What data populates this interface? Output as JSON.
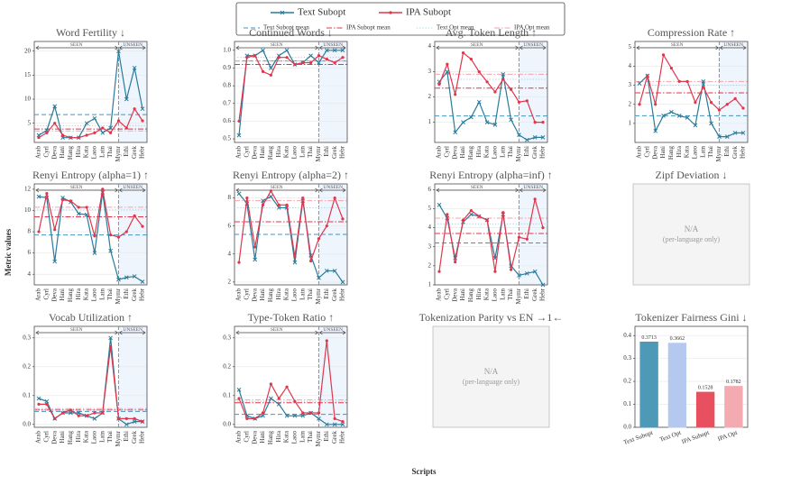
{
  "xlabel": "Scripts",
  "ylabel": "Metric values",
  "legend": [
    {
      "name": "Text Subopt",
      "color": "#2a7b9b",
      "style": "cross"
    },
    {
      "name": "IPA Subopt",
      "color": "#e0364c",
      "style": "dot"
    },
    {
      "name": "Text Subopt mean",
      "color": "#4a93b8",
      "style": "dashed"
    },
    {
      "name": "IPA Subopt mean",
      "color": "#e0364c",
      "style": "dashdot"
    },
    {
      "name": "Text Opt mean",
      "color": "#a9cfe3",
      "style": "dotted"
    },
    {
      "name": "IPA Opt mean",
      "color": "#f2a3ad",
      "style": "dashdot"
    }
  ],
  "chart_data": [
    {
      "type": "line",
      "title": "Word Fertility ↓",
      "categories": [
        "Arab",
        "Cyrl",
        "Deva",
        "Hani",
        "Hang",
        "Hira",
        "Kata",
        "Laoo",
        "Latn",
        "Thai",
        "Mymr",
        "Ethi",
        "Grek",
        "Hebr"
      ],
      "series": [
        {
          "color": "#2a7b9b",
          "values": [
            2.5,
            3.5,
            8.5,
            2,
            2,
            2,
            5,
            6,
            3,
            4,
            20,
            10,
            16.5,
            8
          ]
        },
        {
          "color": "#e0364c",
          "values": [
            2,
            3,
            5,
            2.5,
            2,
            2,
            2.5,
            3,
            4,
            3,
            5.5,
            4,
            8,
            5.5
          ]
        }
      ],
      "means": [
        6.8,
        3.8,
        4.5,
        3.4
      ],
      "ylim": [
        1,
        22
      ],
      "yticks": [
        5,
        10,
        15,
        20
      ],
      "grid": true,
      "seen_label": "SEEN",
      "unseen_label": "UNSEEN",
      "split": "Mymr"
    },
    {
      "type": "line",
      "title": "Continued Words ↓",
      "categories": [
        "Arab",
        "Cyrl",
        "Deva",
        "Hani",
        "Hang",
        "Hira",
        "Kata",
        "Laoo",
        "Latn",
        "Thai",
        "Mymr",
        "Ethi",
        "Grek",
        "Hebr"
      ],
      "series": [
        {
          "color": "#2a7b9b",
          "values": [
            0.52,
            0.97,
            0.97,
            1.0,
            0.9,
            0.97,
            1.0,
            0.92,
            0.93,
            0.97,
            0.93,
            1.0,
            1.0,
            1.0
          ]
        },
        {
          "color": "#e0364c",
          "values": [
            0.6,
            0.96,
            0.97,
            0.88,
            0.86,
            0.96,
            0.96,
            0.92,
            0.93,
            0.93,
            0.97,
            0.95,
            0.93,
            0.96
          ]
        }
      ],
      "means": [
        0.94,
        0.92,
        0.96,
        0.94
      ],
      "ylim": [
        0.48,
        1.05
      ],
      "yticks": [
        0.5,
        0.6,
        0.7,
        0.8,
        0.9,
        {
          "value": 1,
          "label": "1.0"
        }
      ],
      "grid": true,
      "seen_label": "SEEN",
      "unseen_label": "UNSEEN",
      "split": "Mymr"
    },
    {
      "type": "line",
      "title": "Avg. Token Length ↑",
      "categories": [
        "Arab",
        "Cyrl",
        "Deva",
        "Hani",
        "Hang",
        "Hira",
        "Kata",
        "Laoo",
        "Latn",
        "Thai",
        "Mymr",
        "Ethi",
        "Grek",
        "Hebr"
      ],
      "series": [
        {
          "color": "#2a7b9b",
          "values": [
            2.6,
            3,
            0.6,
            1.0,
            1.2,
            1.8,
            1.0,
            0.9,
            2.9,
            1.1,
            0.5,
            0.3,
            0.4,
            0.4
          ]
        },
        {
          "color": "#e0364c",
          "values": [
            2.5,
            3.3,
            2.1,
            3.75,
            3.5,
            3.0,
            2.6,
            2.2,
            2.7,
            2.3,
            1.8,
            1.85,
            1.0,
            1.0
          ]
        }
      ],
      "means": [
        1.25,
        2.35,
        2.7,
        2.9
      ],
      "ylim": [
        0.2,
        4.2
      ],
      "yticks": [
        1,
        2,
        3,
        4
      ],
      "grid": true,
      "seen_label": "SEEN",
      "unseen_label": "UNSEEN",
      "split": "Mymr"
    },
    {
      "type": "line",
      "title": "Compression Rate ↑",
      "categories": [
        "Arab",
        "Cyrl",
        "Deva",
        "Hani",
        "Hang",
        "Hira",
        "Kata",
        "Laoo",
        "Latn",
        "Thai",
        "Mymr",
        "Ethi",
        "Grek",
        "Hebr"
      ],
      "series": [
        {
          "color": "#2a7b9b",
          "values": [
            3.1,
            3.5,
            0.6,
            1.4,
            1.6,
            1.4,
            1.3,
            0.9,
            3.2,
            1.0,
            0.3,
            0.3,
            0.5,
            0.5
          ]
        },
        {
          "color": "#e0364c",
          "values": [
            2.0,
            3.5,
            2.0,
            4.6,
            3.9,
            3.2,
            3.2,
            2.1,
            2.9,
            2.1,
            1.7,
            2.0,
            2.3,
            1.8
          ]
        }
      ],
      "means": [
        1.4,
        2.6,
        3.0,
        3.2
      ],
      "ylim": [
        0,
        5.3
      ],
      "yticks": [
        1,
        2,
        3,
        4,
        5
      ],
      "grid": true,
      "seen_label": "SEEN",
      "unseen_label": "UNSEEN",
      "split": "Mymr"
    },
    {
      "type": "line",
      "title": "Renyi Entropy (alpha=1) ↑",
      "categories": [
        "Arab",
        "Cyrl",
        "Deva",
        "Hani",
        "Hang",
        "Hira",
        "Kata",
        "Laoo",
        "Latn",
        "Thai",
        "Mymr",
        "Ethi",
        "Grek",
        "Hebr"
      ],
      "series": [
        {
          "color": "#2a7b9b",
          "values": [
            11.3,
            11.2,
            5.2,
            11.2,
            10.8,
            9.7,
            9.6,
            6,
            11.7,
            6.2,
            3.5,
            3.7,
            3.8,
            3.3
          ]
        },
        {
          "color": "#e0364c",
          "values": [
            8,
            11.6,
            8.2,
            11,
            10.9,
            10.3,
            10.3,
            7.6,
            12,
            7.7,
            7.5,
            8,
            9.5,
            8.5
          ]
        }
      ],
      "means": [
        7.7,
        9.4,
        10.1,
        10.3
      ],
      "ylim": [
        3,
        12.5
      ],
      "yticks": [
        4,
        6,
        8,
        10,
        12
      ],
      "grid": true,
      "seen_label": "SEEN",
      "unseen_label": "UNSEEN",
      "split": "Mymr"
    },
    {
      "type": "line",
      "title": "Renyi Entropy (alpha=2) ↑",
      "categories": [
        "Arab",
        "Cyrl",
        "Deva",
        "Hani",
        "Hang",
        "Hira",
        "Kata",
        "Laoo",
        "Latn",
        "Thai",
        "Mymr",
        "Ethi",
        "Grek",
        "Hebr"
      ],
      "series": [
        {
          "color": "#2a7b9b",
          "values": [
            8.3,
            7.6,
            3.6,
            7.8,
            8.1,
            7.3,
            7.3,
            3.4,
            7.8,
            3.9,
            2.3,
            2.8,
            2.8,
            2.0
          ]
        },
        {
          "color": "#e0364c",
          "values": [
            3.4,
            8.0,
            4.5,
            7.5,
            8.5,
            7.5,
            7.5,
            3.8,
            8,
            3.5,
            5.1,
            6,
            8,
            6.5
          ]
        }
      ],
      "means": [
        5.4,
        6.3,
        7.3,
        7.8
      ],
      "ylim": [
        1.8,
        9
      ],
      "yticks": [
        2,
        4,
        6,
        8
      ],
      "grid": true,
      "seen_label": "SEEN",
      "unseen_label": "UNSEEN",
      "split": "Mymr"
    },
    {
      "type": "line",
      "title": "Renyi Entropy (alpha=inf) ↑",
      "categories": [
        "Arab",
        "Cyrl",
        "Deva",
        "Hani",
        "Hang",
        "Hira",
        "Kata",
        "Laoo",
        "Latn",
        "Thai",
        "Mymr",
        "Ethi",
        "Grek",
        "Hebr"
      ],
      "series": [
        {
          "color": "#2a7b9b",
          "values": [
            5.2,
            4.5,
            2.4,
            4.3,
            4.7,
            4.6,
            4.4,
            2.4,
            4.7,
            2.0,
            1.5,
            1.6,
            1.7,
            1.0
          ]
        },
        {
          "color": "#e0364c",
          "values": [
            1.7,
            4.7,
            2.2,
            4.4,
            4.9,
            4.6,
            4.4,
            1.7,
            4.8,
            1.8,
            3.5,
            3.4,
            5.5,
            4.0
          ]
        }
      ],
      "means": [
        3.2,
        3.7,
        4.2,
        4.5
      ],
      "ylim": [
        1,
        6.3
      ],
      "yticks": [
        1,
        2,
        3,
        4,
        5,
        6
      ],
      "grid": true,
      "seen_label": "SEEN",
      "unseen_label": "UNSEEN",
      "split": "Mymr"
    },
    {
      "type": "placeholder",
      "title": "Zipf Deviation ↓",
      "text": "N/A",
      "note": "(per-language only)"
    },
    {
      "type": "line",
      "title": "Vocab Utilization ↑",
      "categories": [
        "Arab",
        "Cyrl",
        "Deva",
        "Hani",
        "Hang",
        "Hira",
        "Kata",
        "Laoo",
        "Latn",
        "Thai",
        "Mymr",
        "Ethi",
        "Grek",
        "Hebr"
      ],
      "series": [
        {
          "color": "#2a7b9b",
          "values": [
            0.09,
            0.08,
            0.02,
            0.04,
            0.04,
            0.04,
            0.03,
            0.02,
            0.04,
            0.3,
            0.02,
            0.0,
            0.01,
            0.01
          ]
        },
        {
          "color": "#e0364c",
          "values": [
            0.07,
            0.07,
            0.02,
            0.04,
            0.05,
            0.03,
            0.03,
            0.04,
            0.04,
            0.27,
            0.02,
            0.02,
            0.02,
            0.01
          ]
        }
      ],
      "means": [
        0.045,
        0.05,
        0.05,
        0.055
      ],
      "ylim": [
        -0.01,
        0.34
      ],
      "yticks": [
        {
          "value": 0,
          "label": "0.0"
        },
        0.1,
        0.2,
        0.3
      ],
      "grid": true,
      "seen_label": "SEEN",
      "unseen_label": "UNSEEN",
      "split": "Mymr"
    },
    {
      "type": "line",
      "title": "Type-Token Ratio ↑",
      "categories": [
        "Arab",
        "Cyrl",
        "Deva",
        "Hani",
        "Hang",
        "Hira",
        "Kata",
        "Laoo",
        "Latn",
        "Thai",
        "Mymr",
        "Ethi",
        "Grek",
        "Hebr"
      ],
      "series": [
        {
          "color": "#2a7b9b",
          "values": [
            0.12,
            0.03,
            0.02,
            0.03,
            0.09,
            0.07,
            0.03,
            0.03,
            0.03,
            0.04,
            0.02,
            0.0,
            0.0,
            0.0
          ]
        },
        {
          "color": "#e0364c",
          "values": [
            0.09,
            0.02,
            0.02,
            0.04,
            0.14,
            0.09,
            0.13,
            0.08,
            0.04,
            0.04,
            0.04,
            0.29,
            0.02,
            0.01
          ]
        }
      ],
      "means": [
        0.035,
        0.075,
        0.08,
        0.085
      ],
      "ylim": [
        -0.01,
        0.34
      ],
      "yticks": [
        {
          "value": 0,
          "label": "0.0"
        },
        0.1,
        0.2,
        0.3
      ],
      "grid": true,
      "seen_label": "SEEN",
      "unseen_label": "UNSEEN",
      "split": "Mymr"
    },
    {
      "type": "placeholder",
      "title": "Tokenization Parity vs EN →1←",
      "text": "N/A",
      "note": "(per-language only)"
    },
    {
      "type": "bar",
      "title": "Tokenizer Fairness Gini ↓",
      "categories": [
        "Text Subopt",
        "Text Opt",
        "IPA Subopt",
        "IPA Opt"
      ],
      "values": [
        0.3713,
        0.3662,
        0.1528,
        0.1782
      ],
      "colors": [
        "#4e98b8",
        "#b4c8f0",
        "#e8505f",
        "#f4aab1"
      ],
      "ylim": [
        0,
        0.44
      ],
      "yticks": [
        {
          "value": 0,
          "label": "0.0"
        },
        0.1,
        0.2,
        0.3,
        0.4
      ],
      "grid": true
    }
  ]
}
